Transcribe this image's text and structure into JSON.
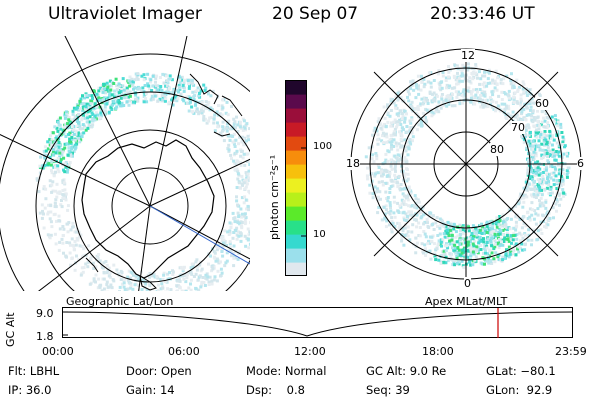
{
  "header": {
    "instrument": "Ultraviolet Imager",
    "date": "20 Sep 07",
    "time": "20:33:46 UT"
  },
  "left_panel": {
    "projection_label": "Geographic Lat/Lon"
  },
  "right_panel": {
    "projection_label": "Apex  MLat/MLT",
    "mlt_labels": {
      "top": "12",
      "bottom": "0",
      "left": "18",
      "right": "6"
    },
    "mlat_labels": [
      "60",
      "70",
      "80"
    ]
  },
  "colorbar": {
    "unit_label": "photon cm⁻²s⁻¹",
    "tick_labels": [
      "100",
      "10"
    ],
    "scale": "log",
    "colors": [
      "#e0e8ee",
      "#9be0ec",
      "#35d9cf",
      "#28e089",
      "#5bea2a",
      "#b8f01a",
      "#ecf020",
      "#f7c00c",
      "#f78d0c",
      "#e24a10",
      "#c81a26",
      "#9a0e3a",
      "#5a0a4c",
      "#20062c"
    ]
  },
  "timeline": {
    "y_axis_label": "GC Alt",
    "y_ticks": [
      "9.0",
      "1.8"
    ],
    "x_ticks": [
      "00:00",
      "06:00",
      "12:00",
      "18:00",
      "23:59"
    ],
    "marker_color": "#cc0000",
    "marker_time_hours": 20.56
  },
  "info": {
    "row1": {
      "filter": "Flt: LBHL",
      "door": "Door: Open",
      "mode": "Mode: Normal",
      "gc_alt": "GC Alt: 9.0 Re",
      "glat": "GLat: −80.1"
    },
    "row2": {
      "ip": "IP: 36.0",
      "gain": "Gain: 14",
      "dsp": "Dsp:    0.8",
      "seq": "Seq: 39",
      "glon": "GLon:  92.9"
    }
  }
}
